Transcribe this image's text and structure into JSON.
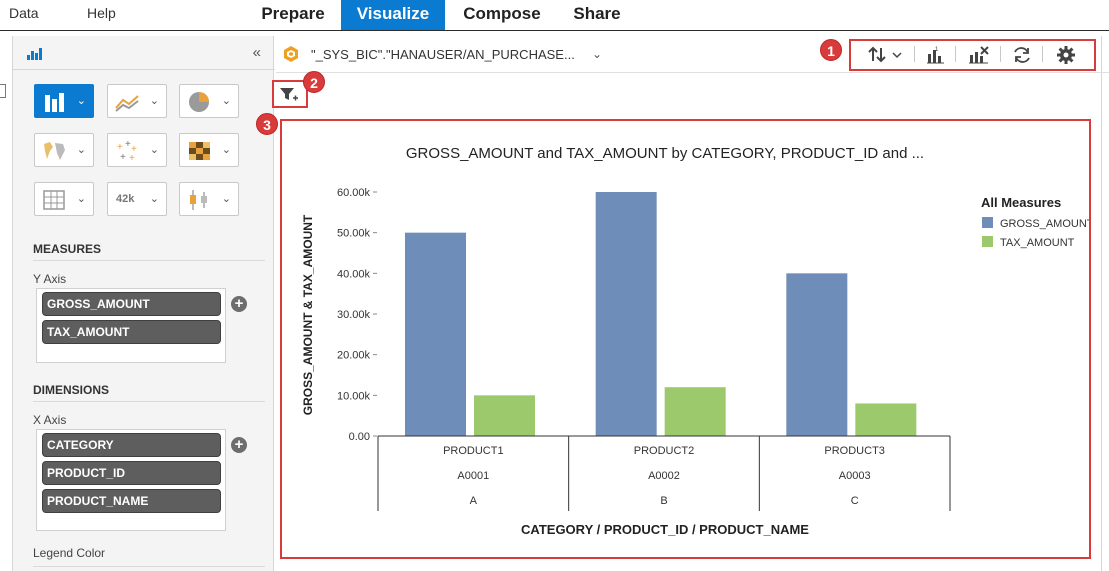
{
  "menu": {
    "data": "Data",
    "help": "Help"
  },
  "tabs": [
    {
      "label": "Prepare",
      "active": false
    },
    {
      "label": "Visualize",
      "active": true
    },
    {
      "label": "Compose",
      "active": false
    },
    {
      "label": "Share",
      "active": false
    }
  ],
  "left_panel": {
    "collapse_label": "«",
    "chart_types": [
      "bar-chart-icon",
      "line-chart-icon",
      "pie-chart-icon",
      "geo-map-icon",
      "scatter-chart-icon",
      "heatmap-icon",
      "table-icon",
      "numeric-point-icon",
      "box-plot-icon"
    ],
    "numeric_point_label": "42k",
    "measures_title": "MEASURES",
    "y_axis_label": "Y Axis",
    "measures": [
      "GROSS_AMOUNT",
      "TAX_AMOUNT"
    ],
    "dimensions_title": "DIMENSIONS",
    "x_axis_label": "X Axis",
    "dimensions": [
      "CATEGORY",
      "PRODUCT_ID",
      "PRODUCT_NAME"
    ],
    "legend_color_label": "Legend Color"
  },
  "main": {
    "datasource": "\"_SYS_BIC\".\"HANAUSER/AN_PURCHASE...",
    "badges": [
      "1",
      "2",
      "3"
    ],
    "accent": "#0a7bd1",
    "highlight": "#d93a3a"
  },
  "chart_data": {
    "type": "bar",
    "title": "GROSS_AMOUNT and TAX_AMOUNT by CATEGORY, PRODUCT_ID and ...",
    "ylabel": "GROSS_AMOUNT & TAX_AMOUNT",
    "xlabel": "CATEGORY / PRODUCT_ID / PRODUCT_NAME",
    "categories": [
      {
        "product_name": "PRODUCT1",
        "product_id": "A0001",
        "category": "A"
      },
      {
        "product_name": "PRODUCT2",
        "product_id": "A0002",
        "category": "B"
      },
      {
        "product_name": "PRODUCT3",
        "product_id": "A0003",
        "category": "C"
      }
    ],
    "series": [
      {
        "name": "GROSS_AMOUNT",
        "color": "#6f8db9",
        "values": [
          50000,
          60000,
          40000
        ]
      },
      {
        "name": "TAX_AMOUNT",
        "color": "#9cc96b",
        "values": [
          10000,
          12000,
          8000
        ]
      }
    ],
    "ylim": [
      0,
      60000
    ],
    "yticks": [
      "0.00",
      "10.00k",
      "20.00k",
      "30.00k",
      "40.00k",
      "50.00k",
      "60.00k"
    ],
    "legend_title": "All Measures",
    "legend_position": "right"
  }
}
